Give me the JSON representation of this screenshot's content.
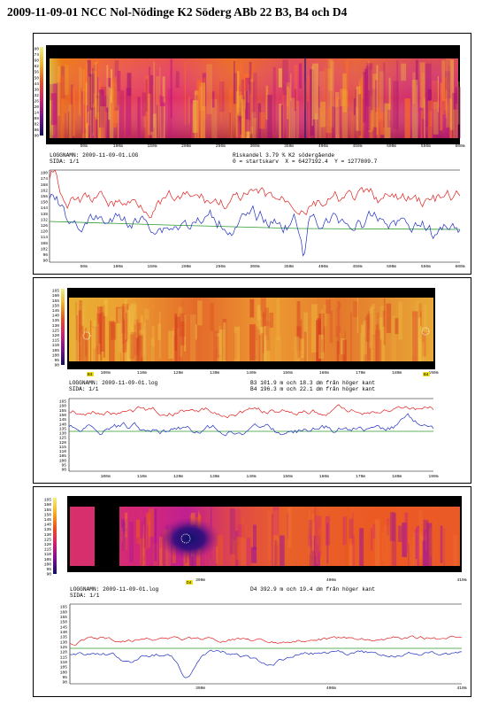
{
  "title": "2009-11-09-01 NCC Nol-Nödinge K2 Söderg ABb 22 B3, B4 och D4",
  "panels": [
    {
      "id": "p1",
      "thermal_scale": [
        "180",
        "174",
        "168",
        "162",
        "156",
        "150",
        "144",
        "138",
        "132",
        "126",
        "120",
        "114",
        "108",
        "102",
        "96",
        "90"
      ],
      "thermal_x_ticks": [
        "50m",
        "100m",
        "150m",
        "200m",
        "250m",
        "300m",
        "350m",
        "400m",
        "450m",
        "500m",
        "550m",
        "600m"
      ],
      "info": {
        "left1": "LOGGNAMN: 2009-11-09-01.LOG",
        "left2": "SIDA: 1/1",
        "right1": "Riskandel 3.79 % K2 södergående",
        "right2": "0 = startskarv  X = 6427192.4  Y = 1277809.7"
      },
      "line_y_ticks": [
        "180",
        "174",
        "168",
        "162",
        "156",
        "150",
        "144",
        "138",
        "132",
        "126",
        "120",
        "114",
        "108",
        "102",
        "96",
        "90"
      ],
      "line_x_ticks": [
        "50m",
        "100m",
        "150m",
        "200m",
        "250m",
        "300m",
        "350m",
        "400m",
        "450m",
        "500m",
        "550m",
        "600m"
      ]
    },
    {
      "id": "p2",
      "thermal_scale": [
        "165",
        "160",
        "155",
        "150",
        "145",
        "140",
        "135",
        "130",
        "125",
        "120",
        "115",
        "110",
        "105",
        "100",
        "95",
        "90"
      ],
      "thermal_x_ticks": [
        "100m",
        "110m",
        "120m",
        "130m",
        "140m",
        "150m",
        "160m",
        "170m",
        "180m",
        "190m"
      ],
      "markers": [
        "B3",
        "B4"
      ],
      "info": {
        "left1": "LOGGNAMN: 2009-11-09-01.log",
        "left2": "SIDA: 1/1",
        "right1": "B3 101.9 m och 18.3 dm från höger kant",
        "right2": "B4 196.3 m och 22.1 dm från höger kant"
      },
      "line_y_ticks": [
        "165",
        "160",
        "155",
        "150",
        "145",
        "140",
        "135",
        "130",
        "125",
        "120",
        "115",
        "110",
        "105",
        "100",
        "95",
        "90"
      ],
      "line_x_ticks": [
        "100m",
        "110m",
        "120m",
        "130m",
        "140m",
        "150m",
        "160m",
        "170m",
        "180m",
        "190m"
      ]
    },
    {
      "id": "p3",
      "thermal_scale": [
        "165",
        "160",
        "155",
        "150",
        "145",
        "140",
        "135",
        "130",
        "125",
        "120",
        "115",
        "110",
        "105",
        "100",
        "95",
        "90"
      ],
      "thermal_x_ticks": [
        "390m",
        "400m",
        "410m"
      ],
      "markers": [
        "D4"
      ],
      "info": {
        "left1": "LOGGNAMN: 2009-11-09-01.log",
        "left2": "SIDA: 1/1",
        "right1": "D4 392.9 m och 19.4 dm från höger kant"
      },
      "line_y_ticks": [
        "165",
        "160",
        "155",
        "150",
        "145",
        "140",
        "135",
        "130",
        "125",
        "120",
        "115",
        "110",
        "105",
        "100",
        "95",
        "90"
      ],
      "line_x_ticks": [
        "390m",
        "400m",
        "410m"
      ]
    }
  ]
}
